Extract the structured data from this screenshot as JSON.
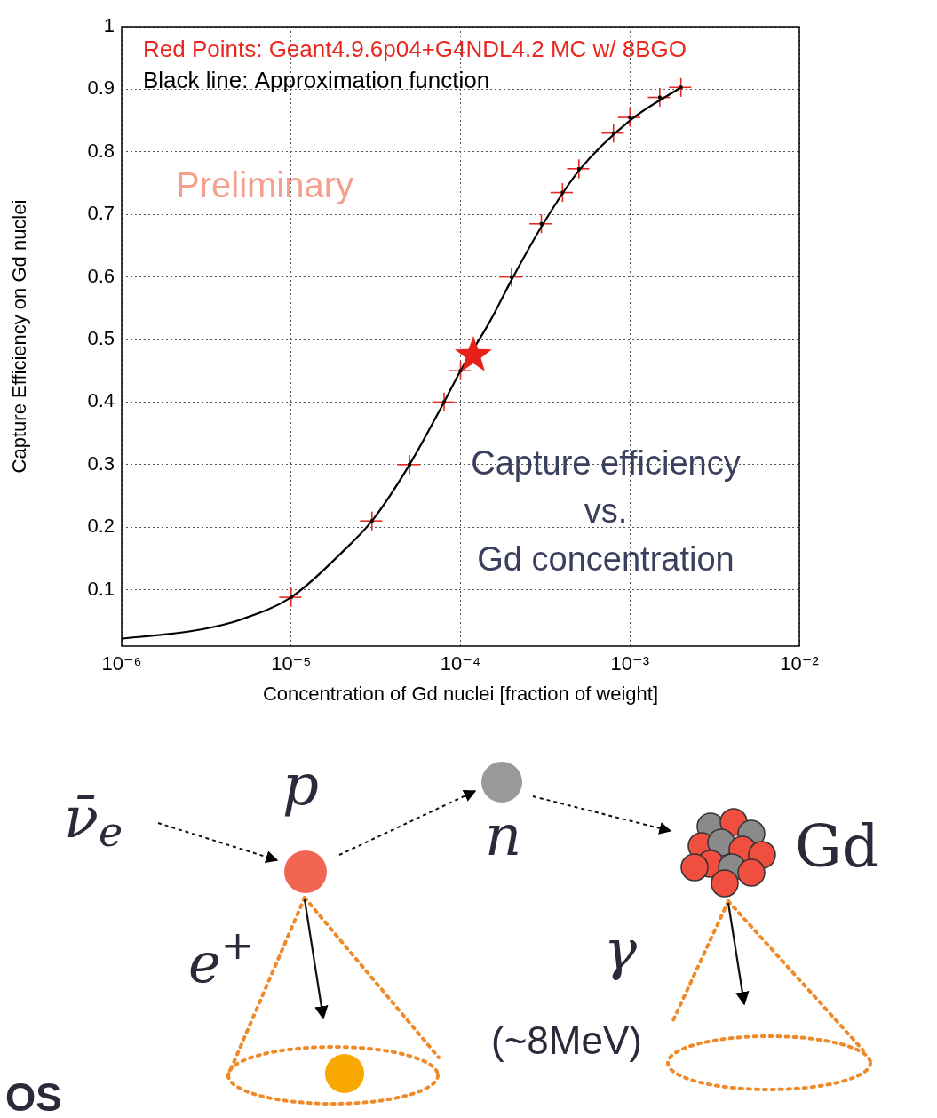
{
  "chart_data": {
    "type": "scatter",
    "x_label": "Concentration of Gd nuclei [fraction of weight]",
    "y_label": "Capture Efficiency on Gd nuclei",
    "log": "x",
    "grid": true,
    "legend": "top-left",
    "xlim": [
      1e-06,
      0.01
    ],
    "xticks": [
      {
        "value": 1e-06,
        "label": "10⁻⁶"
      },
      {
        "value": 1e-05,
        "label": "10⁻⁵"
      },
      {
        "value": 0.0001,
        "label": "10⁻⁴"
      },
      {
        "value": 0.001,
        "label": "10⁻³"
      },
      {
        "value": 0.01,
        "label": "10⁻²"
      }
    ],
    "ylim": [
      0.01,
      1
    ],
    "yticks": [
      0.1,
      0.2,
      0.3,
      0.4,
      0.5,
      0.6,
      0.7,
      0.8,
      0.9,
      1
    ],
    "series": [
      {
        "name": "Black line: Approximation function",
        "type": "line",
        "color": "#000000",
        "line_style": "solid",
        "x": [
          1e-06,
          2e-06,
          3e-06,
          5e-06,
          1e-05,
          2e-05,
          3e-05,
          5e-05,
          8e-05,
          0.0001,
          0.00015,
          0.0002,
          0.0003,
          0.0005,
          0.001,
          0.002
        ],
        "values": [
          0.022,
          0.03,
          0.037,
          0.052,
          0.088,
          0.16,
          0.21,
          0.3,
          0.4,
          0.45,
          0.53,
          0.595,
          0.68,
          0.77,
          0.85,
          0.903
        ]
      },
      {
        "name": "Red Points: Geant4.9.6p04+G4NDL4.2 MC w/ 8BGO",
        "type": "scatter",
        "color": "#e8271f",
        "marker": "square",
        "x": [
          1e-05,
          3e-05,
          5e-05,
          8e-05,
          0.0001,
          0.0002,
          0.0003,
          0.0004,
          0.0005,
          0.0008,
          0.001,
          0.0015,
          0.002
        ],
        "values": [
          0.088,
          0.21,
          0.3,
          0.4,
          0.45,
          0.6,
          0.685,
          0.735,
          0.773,
          0.83,
          0.855,
          0.887,
          0.903
        ],
        "xerr": [
          1.5e-06,
          4.5e-06,
          7.5e-06,
          1.2e-05,
          1.5e-05,
          3e-05,
          4.5e-05,
          6e-05,
          7.5e-05,
          0.00012,
          0.00015,
          0.000225,
          0.0003
        ],
        "yerr": [
          0.015,
          0.015,
          0.015,
          0.015,
          0.015,
          0.015,
          0.015,
          0.015,
          0.015,
          0.015,
          0.015,
          0.015,
          0.015
        ]
      },
      {
        "type": "scatter",
        "marker": "star",
        "color": "#e8201a",
        "x": [
          0.000119
        ],
        "values": [
          0.476
        ]
      }
    ],
    "annotations": [
      {
        "text": [
          "Preliminary"
        ],
        "color": "#f4a08f"
      },
      {
        "text": [
          "Capture efficiency",
          "vs.",
          "Gd concentration"
        ],
        "color": "#3b3f5e"
      }
    ]
  },
  "diagram": {
    "nodes": [
      {
        "label": "ν̄",
        "subscript": "e"
      },
      {
        "label": "p"
      },
      {
        "label": "n"
      },
      {
        "label": "Gd"
      }
    ],
    "products": [
      {
        "label": "e",
        "superscript": "+"
      },
      {
        "label": "γ",
        "note": "(~8MeV)"
      }
    ],
    "footer": "OS"
  }
}
